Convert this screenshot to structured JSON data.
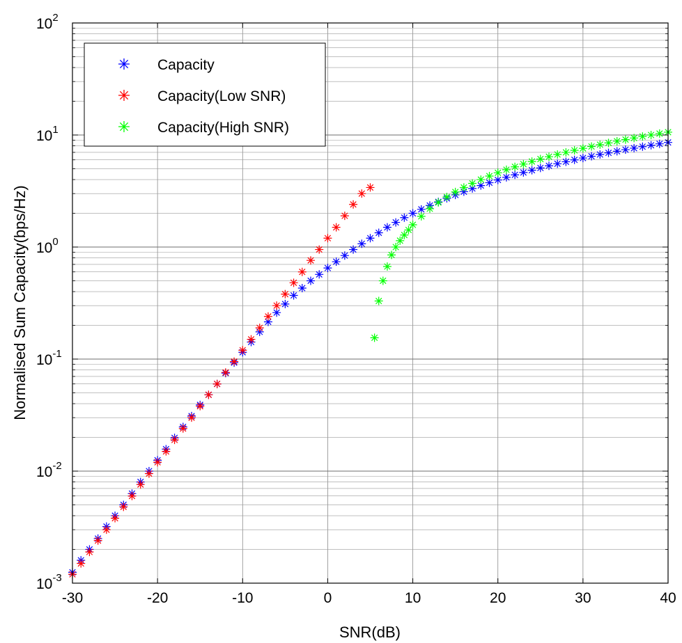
{
  "chart_data": {
    "type": "scatter",
    "title": "",
    "xlabel": "SNR(dB)",
    "ylabel": "Normalised Sum Capacity(bps/Hz)",
    "xlim": [
      -30,
      40
    ],
    "ylim": [
      0.001,
      100
    ],
    "yscale": "log",
    "grid": true,
    "marker": "*",
    "legend_position": "top-left",
    "x_ticks": [
      "-30",
      "-20",
      "-10",
      "0",
      "10",
      "20",
      "30",
      "40"
    ],
    "y_ticks": [
      {
        "base": "10",
        "exp": "-3"
      },
      {
        "base": "10",
        "exp": "-2"
      },
      {
        "base": "10",
        "exp": "-1"
      },
      {
        "base": "10",
        "exp": "0"
      },
      {
        "base": "10",
        "exp": "1"
      },
      {
        "base": "10",
        "exp": "2"
      }
    ],
    "series": [
      {
        "name": "Capacity",
        "color": "#0000ff",
        "points": [
          [
            -30,
            0.00125
          ],
          [
            -29,
            0.0016
          ],
          [
            -28,
            0.002
          ],
          [
            -27,
            0.0025
          ],
          [
            -26,
            0.0032
          ],
          [
            -25,
            0.004
          ],
          [
            -24,
            0.005
          ],
          [
            -23,
            0.0063
          ],
          [
            -22,
            0.008
          ],
          [
            -21,
            0.01
          ],
          [
            -20,
            0.0125
          ],
          [
            -19,
            0.0157
          ],
          [
            -18,
            0.0198
          ],
          [
            -17,
            0.0248
          ],
          [
            -16,
            0.031
          ],
          [
            -15,
            0.039
          ],
          [
            -14,
            0.048
          ],
          [
            -13,
            0.06
          ],
          [
            -12,
            0.075
          ],
          [
            -11,
            0.093
          ],
          [
            -10,
            0.115
          ],
          [
            -9,
            0.142
          ],
          [
            -8,
            0.175
          ],
          [
            -7,
            0.215
          ],
          [
            -6,
            0.26
          ],
          [
            -5,
            0.31
          ],
          [
            -4,
            0.37
          ],
          [
            -3,
            0.43
          ],
          [
            -2,
            0.5
          ],
          [
            -1,
            0.57
          ],
          [
            0,
            0.65
          ],
          [
            1,
            0.74
          ],
          [
            2,
            0.84
          ],
          [
            3,
            0.95
          ],
          [
            4,
            1.07
          ],
          [
            5,
            1.2
          ],
          [
            6,
            1.34
          ],
          [
            7,
            1.5
          ],
          [
            8,
            1.66
          ],
          [
            9,
            1.83
          ],
          [
            10,
            2.0
          ],
          [
            11,
            2.17
          ],
          [
            12,
            2.35
          ],
          [
            13,
            2.53
          ],
          [
            14,
            2.72
          ],
          [
            15,
            2.92
          ],
          [
            16,
            3.12
          ],
          [
            17,
            3.33
          ],
          [
            18,
            3.54
          ],
          [
            19,
            3.75
          ],
          [
            20,
            3.97
          ],
          [
            21,
            4.19
          ],
          [
            22,
            4.41
          ],
          [
            23,
            4.63
          ],
          [
            24,
            4.85
          ],
          [
            25,
            5.08
          ],
          [
            26,
            5.31
          ],
          [
            27,
            5.54
          ],
          [
            28,
            5.77
          ],
          [
            29,
            6.0
          ],
          [
            30,
            6.23
          ],
          [
            31,
            6.46
          ],
          [
            32,
            6.7
          ],
          [
            33,
            6.93
          ],
          [
            34,
            7.16
          ],
          [
            35,
            7.4
          ],
          [
            36,
            7.63
          ],
          [
            37,
            7.87
          ],
          [
            38,
            8.1
          ],
          [
            39,
            8.34
          ],
          [
            40,
            8.58
          ]
        ]
      },
      {
        "name": "Capacity(Low SNR)",
        "color": "#ff0000",
        "points": [
          [
            -30,
            0.0012
          ],
          [
            -29,
            0.0015
          ],
          [
            -28,
            0.0019
          ],
          [
            -27,
            0.0024
          ],
          [
            -26,
            0.003
          ],
          [
            -25,
            0.0038
          ],
          [
            -24,
            0.0048
          ],
          [
            -23,
            0.006
          ],
          [
            -22,
            0.0076
          ],
          [
            -21,
            0.0095
          ],
          [
            -20,
            0.012
          ],
          [
            -19,
            0.015
          ],
          [
            -18,
            0.019
          ],
          [
            -17,
            0.024
          ],
          [
            -16,
            0.03
          ],
          [
            -15,
            0.038
          ],
          [
            -14,
            0.048
          ],
          [
            -13,
            0.06
          ],
          [
            -12,
            0.076
          ],
          [
            -11,
            0.095
          ],
          [
            -10,
            0.12
          ],
          [
            -9,
            0.15
          ],
          [
            -8,
            0.19
          ],
          [
            -7,
            0.24
          ],
          [
            -6,
            0.3
          ],
          [
            -5,
            0.38
          ],
          [
            -4,
            0.48
          ],
          [
            -3,
            0.6
          ],
          [
            -2,
            0.76
          ],
          [
            -1,
            0.95
          ],
          [
            0,
            1.2
          ],
          [
            1,
            1.5
          ],
          [
            2,
            1.9
          ],
          [
            3,
            2.4
          ],
          [
            4,
            3.0
          ],
          [
            5,
            3.4
          ]
        ]
      },
      {
        "name": "Capacity(High SNR)",
        "color": "#00ff00",
        "points": [
          [
            5.5,
            0.155
          ],
          [
            6,
            0.33
          ],
          [
            6.5,
            0.5
          ],
          [
            7,
            0.67
          ],
          [
            7.5,
            0.85
          ],
          [
            8,
            1.0
          ],
          [
            8.5,
            1.14
          ],
          [
            9,
            1.28
          ],
          [
            9.5,
            1.42
          ],
          [
            10,
            1.58
          ],
          [
            11,
            1.88
          ],
          [
            12,
            2.2
          ],
          [
            13,
            2.5
          ],
          [
            14,
            2.8
          ],
          [
            15,
            3.1
          ],
          [
            16,
            3.4
          ],
          [
            17,
            3.7
          ],
          [
            18,
            4.0
          ],
          [
            19,
            4.3
          ],
          [
            20,
            4.6
          ],
          [
            21,
            4.9
          ],
          [
            22,
            5.2
          ],
          [
            23,
            5.5
          ],
          [
            24,
            5.8
          ],
          [
            25,
            6.1
          ],
          [
            26,
            6.4
          ],
          [
            27,
            6.7
          ],
          [
            28,
            7.0
          ],
          [
            29,
            7.3
          ],
          [
            30,
            7.6
          ],
          [
            31,
            7.9
          ],
          [
            32,
            8.2
          ],
          [
            33,
            8.5
          ],
          [
            34,
            8.8
          ],
          [
            35,
            9.1
          ],
          [
            36,
            9.4
          ],
          [
            37,
            9.7
          ],
          [
            38,
            10.0
          ],
          [
            39,
            10.3
          ],
          [
            40,
            10.6
          ]
        ]
      }
    ]
  }
}
